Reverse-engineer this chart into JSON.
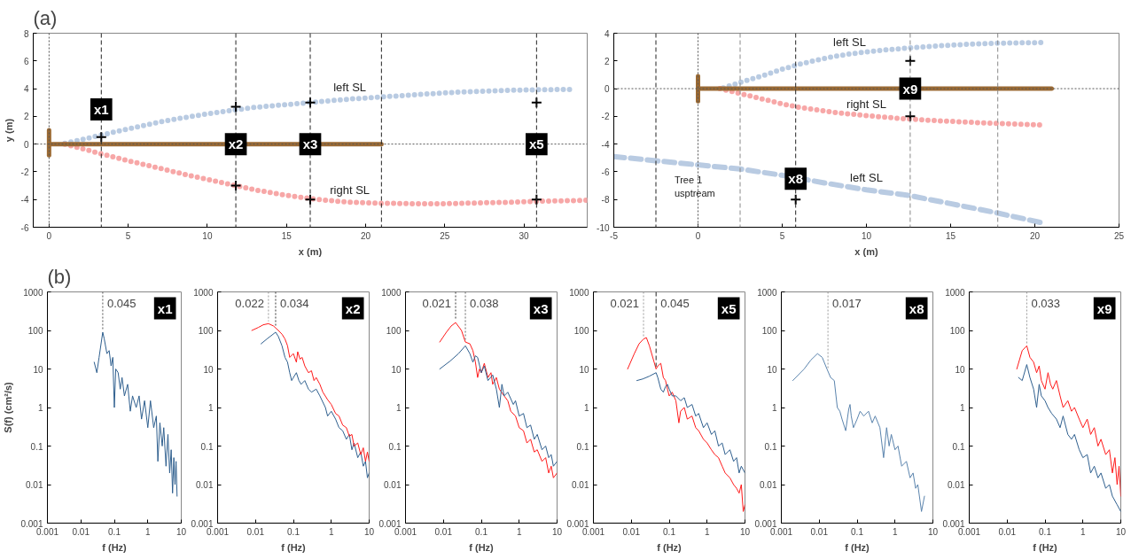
{
  "chart_data": [
    {
      "type": "line",
      "title": "(a)",
      "xlabel": "x (m)",
      "ylabel": "y (m)",
      "xlim": [
        -1,
        34
      ],
      "ylim": [
        -6,
        8
      ],
      "xticks": [
        0,
        5,
        10,
        15,
        20,
        25,
        30
      ],
      "yticks": [
        -6,
        -4,
        -2,
        0,
        2,
        4,
        6,
        8
      ],
      "grid": false,
      "legend": false,
      "series": [
        {
          "name": "left SL",
          "color": "#b9cbe2",
          "line_style": "dotted",
          "x": [
            1,
            2,
            3.3,
            5,
            7,
            9,
            11,
            13,
            15,
            17,
            19,
            21,
            23,
            25,
            27,
            29,
            31,
            33
          ],
          "values": [
            0.05,
            0.3,
            0.65,
            1.1,
            1.6,
            2.0,
            2.35,
            2.65,
            2.85,
            3.05,
            3.25,
            3.4,
            3.55,
            3.7,
            3.8,
            3.88,
            3.92,
            3.95
          ]
        },
        {
          "name": "right SL",
          "color": "#f7a7a7",
          "line_style": "dotted",
          "x": [
            1,
            2,
            3.3,
            5,
            7,
            9,
            11,
            13,
            15,
            17,
            19,
            21,
            23,
            25,
            27,
            29,
            31,
            33,
            34
          ],
          "values": [
            0,
            -0.3,
            -0.7,
            -1.2,
            -1.75,
            -2.3,
            -2.8,
            -3.3,
            -3.7,
            -4.0,
            -4.2,
            -4.27,
            -4.3,
            -4.3,
            -4.25,
            -4.2,
            -4.12,
            -4.08,
            -4.05
          ]
        },
        {
          "color": "#9b6a34",
          "line_style": "solid",
          "x": [
            0,
            21
          ],
          "values": [
            0,
            0
          ]
        },
        {
          "color": "#9b6a34",
          "line_style": "solid",
          "x": [
            0,
            0
          ],
          "values": [
            -0.8,
            1
          ]
        },
        {
          "type": "scatter",
          "marker": "cross",
          "color": "#000000",
          "x": [
            3.3,
            11.8,
            16.5,
            30.8,
            11.8,
            16.5,
            30.8
          ],
          "values": [
            0.5,
            2.7,
            3,
            3,
            -3,
            -4,
            -4
          ]
        }
      ],
      "ref_lines": [
        {
          "axis": "x",
          "value": 0,
          "line_style": "dotted",
          "color": "#555555"
        },
        {
          "axis": "y",
          "value": 0,
          "line_style": "dotted",
          "color": "#555555"
        },
        {
          "axis": "x",
          "value": 3.3,
          "line_style": "dashed",
          "color": "#222222"
        },
        {
          "axis": "x",
          "value": 11.8,
          "line_style": "dashed",
          "color": "#222222"
        },
        {
          "axis": "x",
          "value": 16.5,
          "line_style": "dashed",
          "color": "#222222"
        },
        {
          "axis": "x",
          "value": 21,
          "line_style": "dashed",
          "color": "#222222"
        },
        {
          "axis": "x",
          "value": 30.8,
          "line_style": "dashed",
          "color": "#222222"
        }
      ],
      "annotations": [
        {
          "text": "x1",
          "x": 3.3,
          "y": 2.5
        },
        {
          "text": "x2",
          "x": 11.8,
          "y": 0
        },
        {
          "text": "x3",
          "x": 16.5,
          "y": 0
        },
        {
          "text": "x5",
          "x": 30.8,
          "y": 0
        }
      ]
    },
    {
      "type": "line",
      "xlabel": "x (m)",
      "xlim": [
        -5,
        25
      ],
      "ylim": [
        -10,
        4
      ],
      "xticks": [
        -5,
        0,
        5,
        10,
        15,
        20,
        25
      ],
      "yticks": [
        -10,
        -8,
        -6,
        -4,
        -2,
        0,
        2,
        4
      ],
      "grid": false,
      "legend": false,
      "series": [
        {
          "name": "left SL",
          "color": "#b9cbe2",
          "line_style": "dotted",
          "x": [
            1.5,
            2.5,
            4,
            5,
            6,
            7,
            8,
            9,
            10,
            11,
            12,
            13,
            14,
            15,
            16,
            17,
            18,
            19,
            20.5
          ],
          "values": [
            0.05,
            0.45,
            1.0,
            1.4,
            1.75,
            2.05,
            2.3,
            2.5,
            2.65,
            2.78,
            2.88,
            2.98,
            3.07,
            3.14,
            3.2,
            3.25,
            3.28,
            3.3,
            3.33
          ]
        },
        {
          "name": "right SL",
          "color": "#f7a7a7",
          "line_style": "dotted",
          "x": [
            1.3,
            2.5,
            4,
            5,
            6,
            8,
            10,
            12,
            14,
            16,
            18,
            20.5
          ],
          "values": [
            0,
            -0.35,
            -0.8,
            -1.1,
            -1.35,
            -1.7,
            -1.95,
            -2.15,
            -2.3,
            -2.42,
            -2.52,
            -2.62
          ]
        },
        {
          "name": "left SL",
          "color": "#b9cbe2",
          "line_style": "dashed",
          "x": [
            -5,
            -2.5,
            0,
            2.5,
            5,
            7.5,
            10,
            12.5,
            15,
            17.5,
            20.5
          ],
          "values": [
            -4.9,
            -5.2,
            -5.5,
            -5.8,
            -6.25,
            -6.8,
            -7.3,
            -7.7,
            -8.3,
            -8.9,
            -9.7
          ]
        },
        {
          "color": "#9b6a34",
          "line_style": "solid",
          "x": [
            0,
            21
          ],
          "values": [
            0,
            0
          ]
        },
        {
          "color": "#9b6a34",
          "line_style": "solid",
          "x": [
            0,
            0
          ],
          "values": [
            -0.9,
            0.9
          ]
        },
        {
          "type": "scatter",
          "marker": "cross",
          "color": "#000000",
          "x": [
            12.6,
            12.6,
            5.8
          ],
          "values": [
            2,
            -2,
            -8
          ]
        }
      ],
      "ref_lines": [
        {
          "axis": "x",
          "value": 0,
          "line_style": "dotted",
          "color": "#555555"
        },
        {
          "axis": "y",
          "value": 0,
          "line_style": "dotted",
          "color": "#555555"
        },
        {
          "axis": "x",
          "value": -2.5,
          "line_style": "dashed",
          "color": "#222222"
        },
        {
          "axis": "x",
          "value": 2.5,
          "line_style": "dashed",
          "color": "#888888"
        },
        {
          "axis": "x",
          "value": 5.8,
          "line_style": "dashed",
          "color": "#222222"
        },
        {
          "axis": "x",
          "value": 12.6,
          "line_style": "dashed",
          "color": "#888888"
        },
        {
          "axis": "x",
          "value": 17.8,
          "line_style": "dashed",
          "color": "#888888"
        }
      ],
      "annotations": [
        {
          "text": "x9",
          "x": 12.6,
          "y": 0
        },
        {
          "text": "x8",
          "x": 5.8,
          "y": -6.5
        },
        "Tree 1\nusptream"
      ]
    },
    {
      "type": "line",
      "title": "(b)",
      "log": "xy",
      "xlabel": "f (Hz)",
      "ylabel": "S(f) (cm²/s)",
      "xlim": [
        0.001,
        10
      ],
      "ylim": [
        0.001,
        1000
      ],
      "xticks": [
        0.001,
        0.01,
        0.1,
        1,
        10
      ],
      "yticks": [
        0.001,
        0.01,
        0.1,
        1,
        10,
        100,
        1000
      ],
      "grid": false,
      "legend": false,
      "series": [
        {
          "color": "#2f5f8e",
          "x": [
            0.025,
            0.03,
            0.035,
            0.045,
            0.05,
            0.06,
            0.07,
            0.08,
            0.09,
            0.1,
            0.11,
            0.13,
            0.15,
            0.17,
            0.2,
            0.25,
            0.3,
            0.35,
            0.45,
            0.55,
            0.65,
            0.8,
            1.0,
            1.2,
            1.5,
            1.8,
            2.0,
            2.3,
            2.7,
            3,
            3.5,
            4,
            4.5,
            5,
            5.5,
            6,
            6.5,
            7,
            7.5
          ],
          "values": [
            15,
            8,
            20,
            90,
            60,
            25,
            30,
            12,
            20,
            1,
            10,
            8,
            3,
            6,
            2,
            4,
            0.8,
            2,
            1,
            2,
            0.5,
            1.5,
            0.3,
            1.5,
            0.3,
            0.6,
            0.04,
            0.4,
            0.1,
            0.3,
            0.03,
            0.2,
            0.02,
            0.08,
            0.006,
            0.05,
            0.01,
            0.04,
            0.005
          ]
        }
      ],
      "ref_lines": [
        {
          "axis": "x",
          "value": 0.045,
          "label": "0.045",
          "line_style": "dotted",
          "color": "#555555"
        }
      ],
      "annotations": [
        "x1"
      ]
    },
    {
      "type": "line",
      "log": "xy",
      "xlabel": "f (Hz)",
      "xlim": [
        0.001,
        10
      ],
      "ylim": [
        0.001,
        1000
      ],
      "xticks": [
        0.001,
        0.01,
        0.1,
        1,
        10
      ],
      "yticks": [
        0.001,
        0.01,
        0.1,
        1,
        10,
        100,
        1000
      ],
      "grid": false,
      "legend": false,
      "series": [
        {
          "color": "#2f5f8e",
          "x": [
            0.014,
            0.02,
            0.034,
            0.04,
            0.05,
            0.06,
            0.07,
            0.08,
            0.09,
            0.1,
            0.12,
            0.14,
            0.16,
            0.2,
            0.25,
            0.3,
            0.4,
            0.5,
            0.7,
            0.8,
            1,
            1.3,
            1.6,
            2,
            2.5,
            3,
            3.5,
            4,
            5,
            6,
            7,
            8,
            9,
            10
          ],
          "values": [
            45,
            60,
            90,
            70,
            40,
            20,
            15,
            8,
            5,
            6,
            8,
            5,
            4,
            5,
            3,
            2.5,
            3,
            2,
            1,
            0.6,
            0.8,
            0.5,
            0.3,
            0.25,
            0.15,
            0.2,
            0.08,
            0.12,
            0.05,
            0.07,
            0.03,
            0.04,
            0.015,
            0.02
          ]
        },
        {
          "color": "#ff1a1a",
          "x": [
            0.008,
            0.012,
            0.016,
            0.022,
            0.03,
            0.04,
            0.05,
            0.06,
            0.07,
            0.08,
            0.1,
            0.12,
            0.13,
            0.15,
            0.17,
            0.2,
            0.25,
            0.3,
            0.35,
            0.4,
            0.5,
            0.6,
            0.8,
            1,
            1.3,
            1.6,
            2,
            2.5,
            3,
            3.5,
            4,
            5,
            6,
            7,
            8,
            9,
            10
          ],
          "values": [
            100,
            120,
            140,
            150,
            130,
            100,
            80,
            60,
            40,
            20,
            25,
            15,
            28,
            18,
            20,
            12,
            8,
            9,
            5,
            6,
            4,
            2.5,
            1.6,
            1.2,
            0.7,
            0.6,
            0.35,
            0.3,
            0.18,
            0.2,
            0.1,
            0.12,
            0.06,
            0.09,
            0.04,
            0.07,
            0.04
          ]
        }
      ],
      "ref_lines": [
        {
          "axis": "x",
          "value": 0.022,
          "label": "0.022",
          "line_style": "dotted",
          "color": "#999999"
        },
        {
          "axis": "x",
          "value": 0.034,
          "label": "0.034",
          "line_style": "dotted",
          "color": "#333333"
        }
      ],
      "annotations": [
        "x2"
      ]
    },
    {
      "type": "line",
      "log": "xy",
      "xlabel": "f (Hz)",
      "xlim": [
        0.001,
        10
      ],
      "ylim": [
        0.001,
        1000
      ],
      "xticks": [
        0.001,
        0.01,
        0.1,
        1,
        10
      ],
      "yticks": [
        0.001,
        0.01,
        0.1,
        1,
        10,
        100,
        1000
      ],
      "grid": false,
      "legend": false,
      "series": [
        {
          "color": "#ff1a1a",
          "x": [
            0.008,
            0.012,
            0.016,
            0.021,
            0.03,
            0.038,
            0.05,
            0.06,
            0.07,
            0.08,
            0.09,
            0.1,
            0.12,
            0.15,
            0.18,
            0.2,
            0.25,
            0.3,
            0.4,
            0.5,
            0.6,
            0.8,
            1,
            1.3,
            1.6,
            2,
            2.5,
            3,
            4,
            5,
            6,
            7,
            8,
            10
          ],
          "values": [
            50,
            90,
            130,
            160,
            100,
            50,
            45,
            30,
            15,
            6,
            10,
            8,
            14,
            6,
            8,
            4,
            6,
            3,
            2,
            1.5,
            0.8,
            0.6,
            0.3,
            0.25,
            0.12,
            0.15,
            0.07,
            0.08,
            0.04,
            0.05,
            0.02,
            0.03,
            0.015,
            0.02
          ]
        },
        {
          "color": "#2f5f8e",
          "x": [
            0.008,
            0.015,
            0.025,
            0.038,
            0.05,
            0.06,
            0.07,
            0.08,
            0.1,
            0.12,
            0.15,
            0.2,
            0.25,
            0.3,
            0.35,
            0.4,
            0.5,
            0.7,
            0.8,
            1,
            1.3,
            1.6,
            2,
            2.5,
            3,
            4,
            5,
            6,
            7,
            8,
            10
          ],
          "values": [
            10,
            16,
            25,
            40,
            25,
            15,
            22,
            20,
            8,
            12,
            5,
            7,
            3,
            1,
            4,
            2,
            2.5,
            1.2,
            1.5,
            0.6,
            0.7,
            0.3,
            0.35,
            0.15,
            0.2,
            0.08,
            0.1,
            0.05,
            0.06,
            0.03,
            0.04
          ]
        }
      ],
      "ref_lines": [
        {
          "axis": "x",
          "value": 0.021,
          "label": "0.021",
          "line_style": "dotted",
          "color": "#333333"
        },
        {
          "axis": "x",
          "value": 0.038,
          "label": "0.038",
          "line_style": "dotted",
          "color": "#666666"
        }
      ],
      "annotations": [
        "x3"
      ]
    },
    {
      "type": "line",
      "log": "xy",
      "xlabel": "f (Hz)",
      "xlim": [
        0.001,
        10
      ],
      "ylim": [
        0.001,
        1000
      ],
      "xticks": [
        0.001,
        0.01,
        0.1,
        1,
        10
      ],
      "yticks": [
        0.001,
        0.01,
        0.1,
        1,
        10,
        100,
        1000
      ],
      "grid": false,
      "legend": false,
      "series": [
        {
          "color": "#ff1a1a",
          "x": [
            0.008,
            0.012,
            0.016,
            0.021,
            0.025,
            0.03,
            0.04,
            0.045,
            0.05,
            0.06,
            0.07,
            0.08,
            0.09,
            0.1,
            0.12,
            0.15,
            0.18,
            0.2,
            0.25,
            0.3,
            0.4,
            0.5,
            0.6,
            0.8,
            1,
            1.3,
            1.6,
            2,
            2.5,
            3,
            4,
            5,
            6,
            7,
            8,
            9,
            10
          ],
          "values": [
            10,
            25,
            45,
            60,
            65,
            40,
            15,
            10,
            12,
            14,
            6,
            5,
            3,
            2,
            2.5,
            1.5,
            0.4,
            0.8,
            1,
            0.5,
            0.6,
            0.3,
            0.25,
            0.15,
            0.12,
            0.08,
            0.06,
            0.05,
            0.03,
            0.02,
            0.015,
            0.01,
            0.008,
            0.006,
            0.01,
            0.002,
            0.003
          ]
        },
        {
          "color": "#2f5f8e",
          "x": [
            0.014,
            0.02,
            0.03,
            0.045,
            0.05,
            0.06,
            0.07,
            0.08,
            0.09,
            0.1,
            0.12,
            0.15,
            0.2,
            0.25,
            0.3,
            0.4,
            0.5,
            0.6,
            0.8,
            1,
            1.3,
            1.6,
            2,
            2.5,
            3,
            4,
            5,
            6,
            7,
            8,
            10
          ],
          "values": [
            5,
            5.5,
            6.5,
            8,
            6,
            3,
            2.5,
            3.5,
            4,
            3,
            2,
            2,
            1.5,
            1.8,
            1,
            1.2,
            0.6,
            0.7,
            0.3,
            0.4,
            0.2,
            0.25,
            0.1,
            0.12,
            0.06,
            0.08,
            0.04,
            0.05,
            0.02,
            0.03,
            0.02
          ]
        }
      ],
      "ref_lines": [
        {
          "axis": "x",
          "value": 0.021,
          "label": "0.021",
          "line_style": "dotted",
          "color": "#999999"
        },
        {
          "axis": "x",
          "value": 0.045,
          "label": "0.045",
          "line_style": "dashed",
          "color": "#222222"
        }
      ],
      "annotations": [
        "x5"
      ]
    },
    {
      "type": "line",
      "log": "xy",
      "xlabel": "f (Hz)",
      "xlim": [
        0.001,
        10
      ],
      "ylim": [
        0.001,
        1000
      ],
      "xticks": [
        0.001,
        0.01,
        0.1,
        1,
        10
      ],
      "yticks": [
        0.001,
        0.01,
        0.1,
        1,
        10,
        100,
        1000
      ],
      "grid": false,
      "legend": false,
      "series": [
        {
          "color": "#5b84ad",
          "x": [
            0.002,
            0.004,
            0.006,
            0.009,
            0.012,
            0.016,
            0.02,
            0.025,
            0.03,
            0.035,
            0.04,
            0.05,
            0.06,
            0.065,
            0.07,
            0.08,
            0.1,
            0.12,
            0.15,
            0.2,
            0.25,
            0.3,
            0.4,
            0.5,
            0.6,
            0.7,
            0.8,
            1,
            1.2,
            1.5,
            2,
            2.5,
            3,
            3.5,
            4,
            5,
            6
          ],
          "values": [
            5,
            10,
            17,
            25,
            20,
            10,
            6,
            5,
            1,
            0.8,
            0.5,
            0.25,
            0.9,
            1.2,
            0.6,
            0.3,
            0.5,
            0.8,
            0.6,
            0.8,
            0.4,
            0.6,
            0.3,
            0.05,
            0.3,
            0.1,
            0.2,
            0.08,
            0.1,
            0.03,
            0.04,
            0.015,
            0.02,
            0.008,
            0.01,
            0.002,
            0.005
          ]
        }
      ],
      "ref_lines": [
        {
          "axis": "x",
          "value": 0.017,
          "label": "0.017",
          "line_style": "dotted",
          "color": "#999999"
        }
      ],
      "annotations": [
        "x8"
      ]
    },
    {
      "type": "line",
      "log": "xy",
      "xlabel": "f (Hz)",
      "xlim": [
        0.001,
        10
      ],
      "ylim": [
        0.001,
        1000
      ],
      "xticks": [
        0.001,
        0.01,
        0.1,
        1,
        10
      ],
      "yticks": [
        0.001,
        0.01,
        0.1,
        1,
        10,
        100,
        1000
      ],
      "grid": false,
      "legend": false,
      "series": [
        {
          "color": "#ff1a1a",
          "x": [
            0.018,
            0.025,
            0.033,
            0.04,
            0.05,
            0.06,
            0.07,
            0.08,
            0.1,
            0.12,
            0.14,
            0.16,
            0.2,
            0.25,
            0.3,
            0.4,
            0.5,
            0.6,
            0.8,
            1,
            1.3,
            1.6,
            2,
            2.5,
            3,
            4,
            5,
            6,
            7,
            8,
            9,
            10
          ],
          "values": [
            10,
            30,
            40,
            20,
            15,
            8,
            12,
            5,
            3,
            8,
            4,
            3,
            5,
            2,
            1,
            1.5,
            0.8,
            1,
            0.5,
            0.3,
            0.5,
            0.2,
            0.3,
            0.1,
            0.15,
            0.06,
            0.08,
            0.02,
            0.05,
            0.01,
            0.03,
            0.005
          ]
        },
        {
          "color": "#2f5f8e",
          "x": [
            0.02,
            0.025,
            0.033,
            0.04,
            0.05,
            0.06,
            0.07,
            0.08,
            0.1,
            0.12,
            0.15,
            0.2,
            0.25,
            0.3,
            0.4,
            0.5,
            0.6,
            0.8,
            1,
            1.3,
            1.6,
            2,
            2.5,
            3,
            4,
            5,
            6,
            8,
            10
          ],
          "values": [
            6,
            5,
            13,
            6,
            3,
            1,
            4,
            2,
            1.5,
            1,
            0.7,
            0.5,
            0.3,
            0.6,
            0.2,
            0.15,
            0.2,
            0.08,
            0.05,
            0.06,
            0.02,
            0.03,
            0.015,
            0.02,
            0.008,
            0.01,
            0.005,
            0.003,
            0.002
          ]
        }
      ],
      "ref_lines": [
        {
          "axis": "x",
          "value": 0.033,
          "label": "0.033",
          "line_style": "dotted",
          "color": "#999999"
        }
      ],
      "annotations": [
        "x9"
      ]
    }
  ]
}
